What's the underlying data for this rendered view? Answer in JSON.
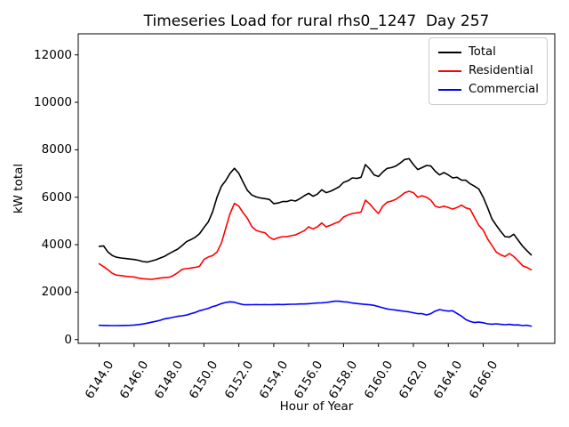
{
  "chart_data": {
    "type": "line",
    "title": "Timeseries Load for rural rhs0_1247  Day 257",
    "xlabel": "Hour of Year",
    "ylabel": "kW total",
    "grid": false,
    "legend_position": "upper right",
    "x_start": 6144.0,
    "x_step": 0.25,
    "xlim": [
      6142.8,
      6170.1
    ],
    "ylim": [
      -161,
      12889
    ],
    "yticks": [
      0,
      2000,
      4000,
      6000,
      8000,
      10000,
      12000
    ],
    "ytick_labels": [
      "0",
      "2000",
      "4000",
      "6000",
      "8000",
      "10000",
      "12000"
    ],
    "xticks": [
      6144,
      6146,
      6148,
      6150,
      6152,
      6154,
      6156,
      6158,
      6160,
      6162,
      6164,
      6166,
      6168
    ],
    "xtick_labels": [
      "6144.0",
      "6146.0",
      "6148.0",
      "6150.0",
      "6152.0",
      "6154.0",
      "6156.0",
      "6158.0",
      "6160.0",
      "6162.0",
      "6164.0",
      "6166.0",
      ""
    ],
    "series": [
      {
        "name": "Total",
        "color": "#000000",
        "values": [
          3930,
          3950,
          3690,
          3540,
          3470,
          3440,
          3415,
          3395,
          3375,
          3340,
          3290,
          3265,
          3310,
          3365,
          3440,
          3510,
          3620,
          3715,
          3815,
          3960,
          4125,
          4210,
          4310,
          4465,
          4720,
          4960,
          5390,
          6000,
          6460,
          6700,
          7010,
          7220,
          7010,
          6630,
          6280,
          6090,
          6010,
          5965,
          5940,
          5905,
          5730,
          5755,
          5815,
          5815,
          5875,
          5840,
          5940,
          6065,
          6165,
          6040,
          6130,
          6315,
          6190,
          6250,
          6340,
          6440,
          6625,
          6690,
          6815,
          6790,
          6840,
          7375,
          7190,
          6940,
          6875,
          7065,
          7215,
          7250,
          7315,
          7440,
          7590,
          7625,
          7375,
          7165,
          7250,
          7340,
          7315,
          7100,
          6940,
          7040,
          6940,
          6815,
          6840,
          6725,
          6715,
          6565,
          6465,
          6345,
          6000,
          5565,
          5090,
          4815,
          4565,
          4340,
          4315,
          4440,
          4190,
          3940,
          3750,
          3565
        ]
      },
      {
        "name": "Residential",
        "color": "#ff0000",
        "values": [
          3190,
          3075,
          2940,
          2790,
          2715,
          2695,
          2665,
          2650,
          2640,
          2590,
          2565,
          2550,
          2540,
          2565,
          2590,
          2610,
          2625,
          2700,
          2815,
          2960,
          2990,
          3015,
          3040,
          3090,
          3375,
          3480,
          3540,
          3690,
          4065,
          4690,
          5315,
          5740,
          5625,
          5340,
          5105,
          4750,
          4600,
          4540,
          4500,
          4315,
          4215,
          4290,
          4340,
          4340,
          4375,
          4415,
          4500,
          4590,
          4750,
          4665,
          4750,
          4915,
          4750,
          4815,
          4900,
          4965,
          5165,
          5250,
          5315,
          5340,
          5375,
          5875,
          5715,
          5500,
          5315,
          5625,
          5790,
          5840,
          5915,
          6040,
          6190,
          6250,
          6190,
          6000,
          6065,
          6000,
          5875,
          5625,
          5565,
          5625,
          5565,
          5500,
          5565,
          5665,
          5550,
          5500,
          5150,
          4815,
          4615,
          4250,
          3965,
          3690,
          3575,
          3500,
          3625,
          3500,
          3315,
          3115,
          3040,
          2940
        ]
      },
      {
        "name": "Commercial",
        "color": "#0000ff",
        "values": [
          600,
          595,
          592,
          590,
          590,
          592,
          595,
          600,
          610,
          630,
          655,
          690,
          730,
          770,
          815,
          875,
          905,
          940,
          980,
          1000,
          1030,
          1090,
          1140,
          1215,
          1265,
          1315,
          1390,
          1440,
          1515,
          1565,
          1590,
          1575,
          1515,
          1475,
          1465,
          1470,
          1475,
          1470,
          1475,
          1470,
          1475,
          1480,
          1475,
          1480,
          1490,
          1490,
          1500,
          1500,
          1510,
          1525,
          1540,
          1550,
          1565,
          1590,
          1615,
          1615,
          1590,
          1580,
          1540,
          1520,
          1500,
          1480,
          1465,
          1440,
          1390,
          1340,
          1290,
          1265,
          1240,
          1215,
          1190,
          1165,
          1130,
          1090,
          1090,
          1040,
          1090,
          1200,
          1265,
          1225,
          1200,
          1215,
          1100,
          990,
          840,
          765,
          715,
          735,
          710,
          665,
          650,
          665,
          640,
          625,
          640,
          615,
          620,
          590,
          605,
          565
        ]
      }
    ],
    "legend": [
      "Total",
      "Residential",
      "Commercial"
    ]
  }
}
